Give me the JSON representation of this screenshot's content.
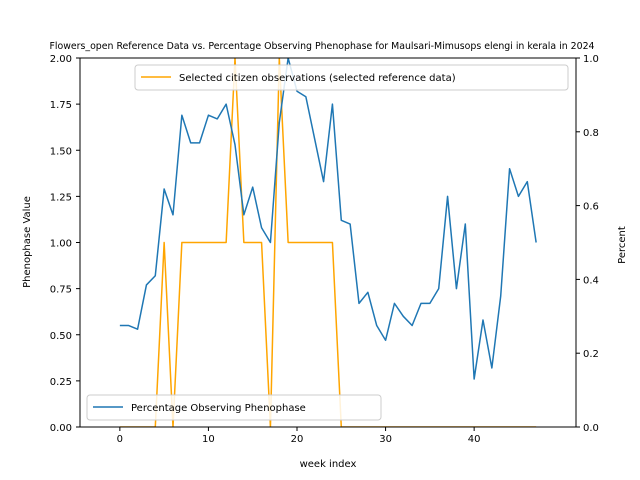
{
  "chart_data": {
    "type": "line",
    "title": "Flowers_open Reference Data vs. Percentage Observing Phenophase for Maulsari-Mimusops elengi in kerala in 2024",
    "xlabel": "week index",
    "ylabel_left": "Phenophase Value",
    "ylabel_right": "Percent",
    "xlim": [
      -4.5,
      51.5
    ],
    "ylim_left": [
      0,
      2.0
    ],
    "ylim_right": [
      0,
      1.0
    ],
    "x_ticks": [
      "0",
      "10",
      "20",
      "30",
      "40"
    ],
    "y_left_ticks": [
      "0.00",
      "0.25",
      "0.50",
      "0.75",
      "1.00",
      "1.25",
      "1.50",
      "1.75",
      "2.00"
    ],
    "y_right_ticks": [
      "0.0",
      "0.2",
      "0.4",
      "0.6",
      "0.8",
      "1.0"
    ],
    "grid": false,
    "series": [
      {
        "name": "Percentage Observing Phenophase",
        "axis": "left",
        "color": "#1f77b4",
        "x": [
          0,
          1,
          2,
          3,
          4,
          5,
          6,
          7,
          8,
          9,
          10,
          11,
          12,
          13,
          14,
          15,
          16,
          17,
          18,
          19,
          20,
          21,
          22,
          23,
          24,
          25,
          26,
          27,
          28,
          29,
          30,
          31,
          32,
          33,
          34,
          35,
          36,
          37,
          38,
          39,
          40,
          41,
          42,
          43,
          44,
          45,
          46,
          47
        ],
        "values": [
          0.55,
          0.55,
          0.53,
          0.77,
          0.82,
          1.29,
          1.15,
          1.69,
          1.54,
          1.54,
          1.69,
          1.67,
          1.75,
          1.53,
          1.15,
          1.3,
          1.08,
          1.0,
          1.65,
          2.0,
          1.82,
          1.79,
          1.56,
          1.33,
          1.75,
          1.12,
          1.1,
          0.67,
          0.73,
          0.55,
          0.47,
          0.67,
          0.6,
          0.55,
          0.67,
          0.67,
          0.75,
          1.25,
          0.75,
          1.1,
          0.26,
          0.58,
          0.32,
          0.71,
          1.4,
          1.25,
          1.33,
          1.0
        ]
      },
      {
        "name": "Selected citizen observations (selected reference data)",
        "axis": "right",
        "color": "#ffa500",
        "x": [
          0,
          1,
          2,
          3,
          4,
          5,
          6,
          7,
          8,
          9,
          10,
          11,
          12,
          13,
          14,
          15,
          16,
          17,
          18,
          19,
          20,
          21,
          22,
          23,
          24,
          25,
          26,
          27,
          28,
          29,
          30,
          31,
          32,
          33,
          34,
          35,
          36,
          37,
          38,
          39,
          40,
          41,
          42,
          43,
          44,
          45,
          46,
          47
        ],
        "values": [
          0,
          0,
          0,
          0,
          0,
          0.5,
          0,
          0.5,
          0.5,
          0.5,
          0.5,
          0.5,
          0.5,
          1,
          0.5,
          0.5,
          0.5,
          0,
          1,
          0.5,
          0.5,
          0.5,
          0.5,
          0.5,
          0.5,
          0,
          0,
          0,
          0,
          0,
          0,
          0,
          0,
          0,
          0,
          0,
          0,
          0,
          0,
          0,
          0,
          0,
          0,
          0,
          0,
          0,
          0,
          0
        ]
      }
    ],
    "legend": [
      {
        "position": "upper-right",
        "series_index": 1
      },
      {
        "position": "lower-left",
        "series_index": 0
      }
    ]
  }
}
